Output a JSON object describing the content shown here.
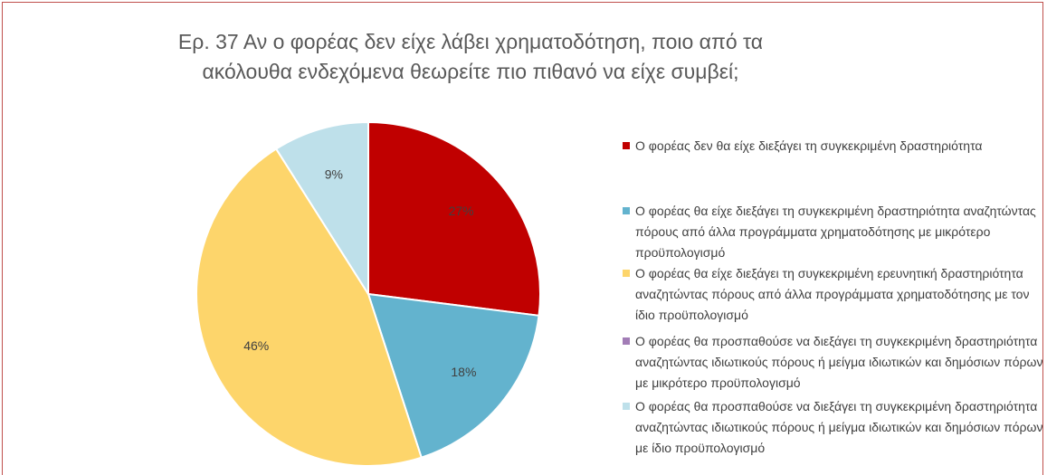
{
  "chart_data": {
    "type": "pie",
    "title": "Ερ. 37 Αν ο φορέας δεν είχε λάβει χρηματοδότηση, ποιο από τα ακόλουθα ενδεχόμενα θεωρείτε πιο πιθανό να είχε συμβεί;",
    "categories": [
      "Ο φορέας  δεν θα είχε διεξάγει τη συγκεκριμένη δραστηριότητα",
      "Ο φορέας θα είχε διεξάγει τη συγκεκριμένη δραστηριότητα αναζητώντας πόρους από άλλα προγράμματα χρηματοδότησης με μικρότερο προϋπολογισμό",
      "Ο φορέας θα είχε διεξάγει τη συγκεκριμένη ερευνητική δραστηριότητα αναζητώντας πόρους από άλλα προγράμματα χρηματοδότησης με τον ίδιο προϋπολογισμό",
      "Ο φορέας θα προσπαθούσε να διεξάγει τη συγκεκριμένη δραστηριότητα αναζητώντας ιδιωτικούς πόρους ή μείγμα ιδιωτικών και δημόσιων πόρων με μικρότερο προϋπολογισμό",
      "Ο φορέας θα προσπαθούσε να διεξάγει τη συγκεκριμένη δραστηριότητα αναζητώντας ιδιωτικούς πόρους  ή μείγμα ιδιωτικών και δημόσιων πόρων με ίδιο προϋπολογισμό"
    ],
    "values": [
      27,
      18,
      46,
      0,
      9
    ],
    "value_labels": [
      "27%",
      "18%",
      "46%",
      null,
      "9%"
    ],
    "colors": [
      "#C00000",
      "#63B3CE",
      "#FDD56B",
      "#A27DB6",
      "#BEE0EA"
    ],
    "legend": "right"
  }
}
